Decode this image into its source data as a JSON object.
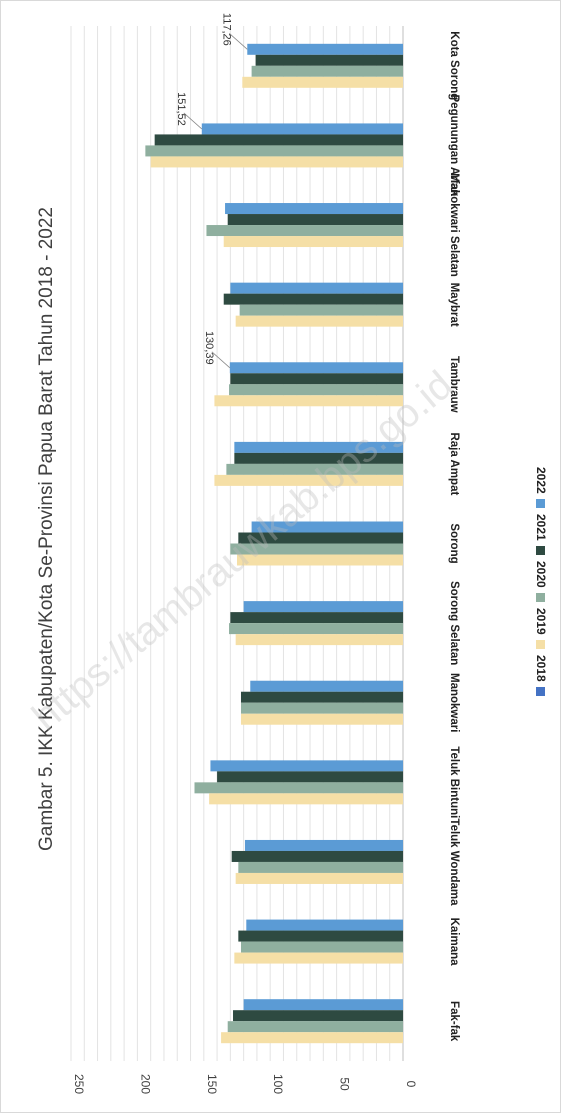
{
  "chart_data": {
    "type": "bar",
    "title": "Gambar 5. IKK Kabupaten/Kota Se-Provinsi Papua Barat Tahun 2018 - 2022",
    "categories": [
      "Fak-fak",
      "Kaimana",
      "Teluk Wondama",
      "Teluk Bintuni",
      "Manokwari",
      "Sorong Selatan",
      "Sorong",
      "Raja Ampat",
      "Tambrauw",
      "Maybrat",
      "Manokwari Selatan",
      "Pegunungan Arfak",
      "Kota Sorong"
    ],
    "series": [
      {
        "name": "2018",
        "color": "#4472c4",
        "values": [
          null,
          null,
          null,
          null,
          null,
          null,
          null,
          null,
          null,
          null,
          null,
          null,
          null
        ]
      },
      {
        "name": "2019",
        "color": "#f5dfa6",
        "values": [
          137,
          127,
          126,
          146,
          122,
          126,
          125,
          142,
          142,
          126,
          135,
          190,
          121
        ]
      },
      {
        "name": "2020",
        "color": "#8faf9f",
        "values": [
          132,
          122,
          124,
          157,
          122,
          131,
          130,
          133,
          131,
          123,
          148,
          194,
          114
        ]
      },
      {
        "name": "2021",
        "color": "#2e4a41",
        "values": [
          128,
          124,
          129,
          140,
          122,
          130,
          124,
          127,
          130,
          135,
          132,
          187,
          111
        ]
      },
      {
        "name": "2022",
        "color": "#5b9bd5",
        "values": [
          120,
          118,
          119,
          145,
          115,
          120,
          114,
          127,
          130.39,
          130,
          134,
          151.52,
          117.26
        ]
      }
    ],
    "value_labels": [
      {
        "category": "Tambrauw",
        "series": "2022",
        "text": "130,39"
      },
      {
        "category": "Pegunungan Arfak",
        "series": "2022",
        "text": "151,52"
      },
      {
        "category": "Kota Sorong",
        "series": "2022",
        "text": "117,26"
      }
    ],
    "yticks": [
      "0",
      "50",
      "100",
      "150",
      "200",
      "250"
    ],
    "ylim": [
      0,
      250
    ],
    "grid": true,
    "legend_position": "bottom",
    "orientation": "rotated 90 degrees clockwise"
  },
  "watermark": "https://tambrauwkab.bps.go.id"
}
